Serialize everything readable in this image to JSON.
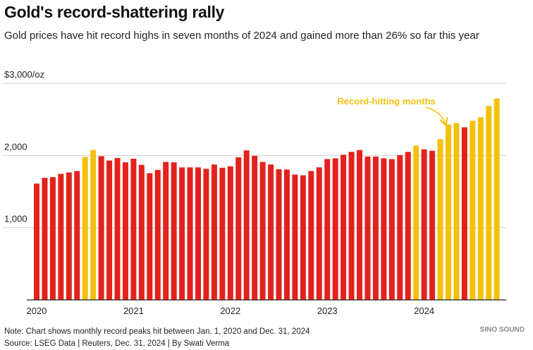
{
  "chart_data": {
    "type": "bar",
    "title": "Gold's record-shattering rally",
    "subtitle": "Gold prices have hit record highs in seven months of 2024 and gained more than 26% so far this year",
    "categories": [
      "2020",
      null,
      null,
      null,
      null,
      null,
      null,
      null,
      null,
      null,
      null,
      null,
      "2021",
      null,
      null,
      null,
      null,
      null,
      null,
      null,
      null,
      null,
      null,
      null,
      "2022",
      null,
      null,
      null,
      null,
      null,
      null,
      null,
      null,
      null,
      null,
      null,
      "2023",
      null,
      null,
      null,
      null,
      null,
      null,
      null,
      null,
      null,
      null,
      null,
      "2024",
      null,
      null,
      null,
      null,
      null,
      null,
      null,
      null,
      null
    ],
    "values": [
      1610,
      1690,
      1700,
      1745,
      1765,
      1785,
      1980,
      2075,
      1990,
      1930,
      1965,
      1905,
      1955,
      1870,
      1755,
      1800,
      1910,
      1905,
      1835,
      1835,
      1835,
      1815,
      1875,
      1830,
      1850,
      1975,
      2070,
      1995,
      1910,
      1875,
      1810,
      1805,
      1735,
      1725,
      1785,
      1835,
      1950,
      1960,
      2010,
      2050,
      2075,
      1985,
      1985,
      1960,
      1950,
      2005,
      2050,
      2135,
      2085,
      2065,
      2225,
      2430,
      2450,
      2390,
      2480,
      2530,
      2685,
      2790
    ],
    "colors": [
      "#e3221c",
      "#e3221c",
      "#e3221c",
      "#e3221c",
      "#e3221c",
      "#e3221c",
      "#f2c10e",
      "#f2c10e",
      "#e3221c",
      "#e3221c",
      "#e3221c",
      "#e3221c",
      "#e3221c",
      "#e3221c",
      "#e3221c",
      "#e3221c",
      "#e3221c",
      "#e3221c",
      "#e3221c",
      "#e3221c",
      "#e3221c",
      "#e3221c",
      "#e3221c",
      "#e3221c",
      "#e3221c",
      "#e3221c",
      "#e3221c",
      "#e3221c",
      "#e3221c",
      "#e3221c",
      "#e3221c",
      "#e3221c",
      "#e3221c",
      "#e3221c",
      "#e3221c",
      "#e3221c",
      "#e3221c",
      "#e3221c",
      "#e3221c",
      "#e3221c",
      "#e3221c",
      "#e3221c",
      "#e3221c",
      "#e3221c",
      "#e3221c",
      "#e3221c",
      "#e3221c",
      "#f2c10e",
      "#e3221c",
      "#e3221c",
      "#f2c10e",
      "#f2c10e",
      "#f2c10e",
      "#e3221c",
      "#f2c10e",
      "#f2c10e",
      "#f2c10e",
      "#f2c10e"
    ],
    "ylim": [
      0,
      3000
    ],
    "yticks": [
      {
        "value": 1000,
        "label": "1,000"
      },
      {
        "value": 2000,
        "label": "2,000"
      },
      {
        "value": 3000,
        "label": "$3,000/oz"
      }
    ],
    "grid": true,
    "annotation": "Record-hitting months",
    "note": "Note: Chart shows monthly record peaks hit between Jan. 1, 2020 and Dec. 31, 2024",
    "source": "Source: LSEG Data | Reuters, Dec. 31, 2024 | By Swati Verma",
    "logo": "SINO SOUND"
  }
}
